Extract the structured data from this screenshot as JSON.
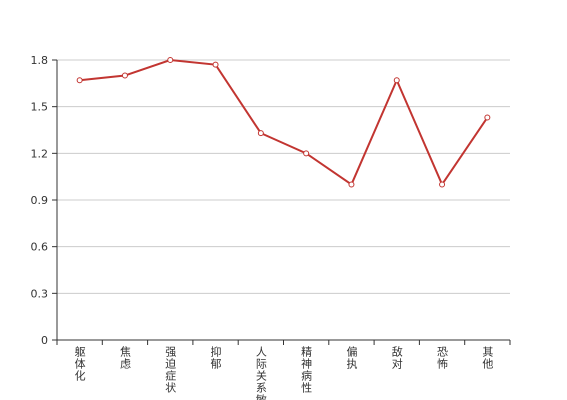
{
  "chart_data": {
    "type": "line",
    "categories": [
      "躯体化",
      "焦虑",
      "强迫症状",
      "抑郁",
      "人际关系敏感",
      "精神病性",
      "偏执",
      "敌对",
      "恐怖",
      "其他"
    ],
    "values": [
      1.67,
      1.7,
      1.8,
      1.77,
      1.33,
      1.2,
      1.0,
      1.67,
      1.0,
      1.43
    ],
    "color": "#c23531",
    "ylim": [
      0,
      1.8
    ],
    "yticks": [
      0,
      0.3,
      0.6,
      0.9,
      1.2,
      1.5,
      1.8
    ],
    "grid": true
  }
}
